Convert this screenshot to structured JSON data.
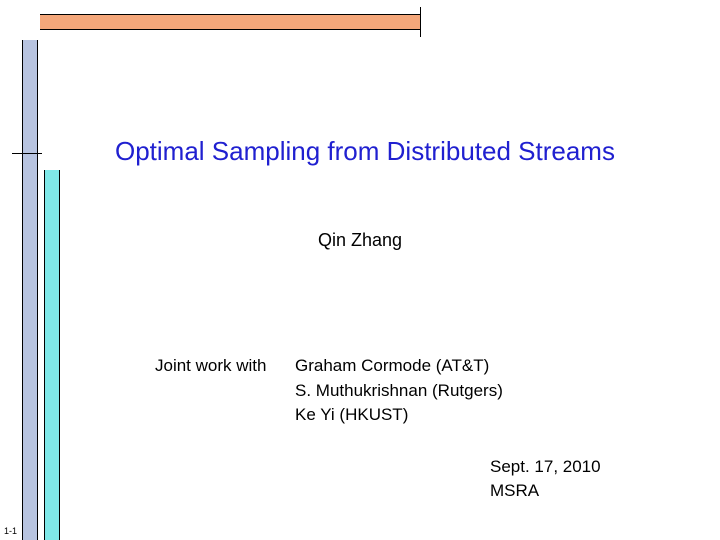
{
  "decor": {
    "top_bar_color": "#f4a77a",
    "left_outer_color": "#b8c4e0",
    "left_inner_color": "#7fe8e8"
  },
  "title": "Optimal Sampling from Distributed Streams",
  "author": "Qin Zhang",
  "joint_label": "Joint work with",
  "collaborators": [
    "Graham Cormode (AT&T)",
    "S. Muthukrishnan (Rutgers)",
    "Ke Yi (HKUST)"
  ],
  "date": "Sept. 17, 2010",
  "venue": "MSRA",
  "page": "1-1",
  "colors": {
    "title_color": "#2020d0",
    "text_color": "#000000",
    "background": "#ffffff"
  },
  "typography": {
    "title_fontsize": 26,
    "body_fontsize": 17,
    "author_fontsize": 18,
    "pagenum_fontsize": 9
  }
}
